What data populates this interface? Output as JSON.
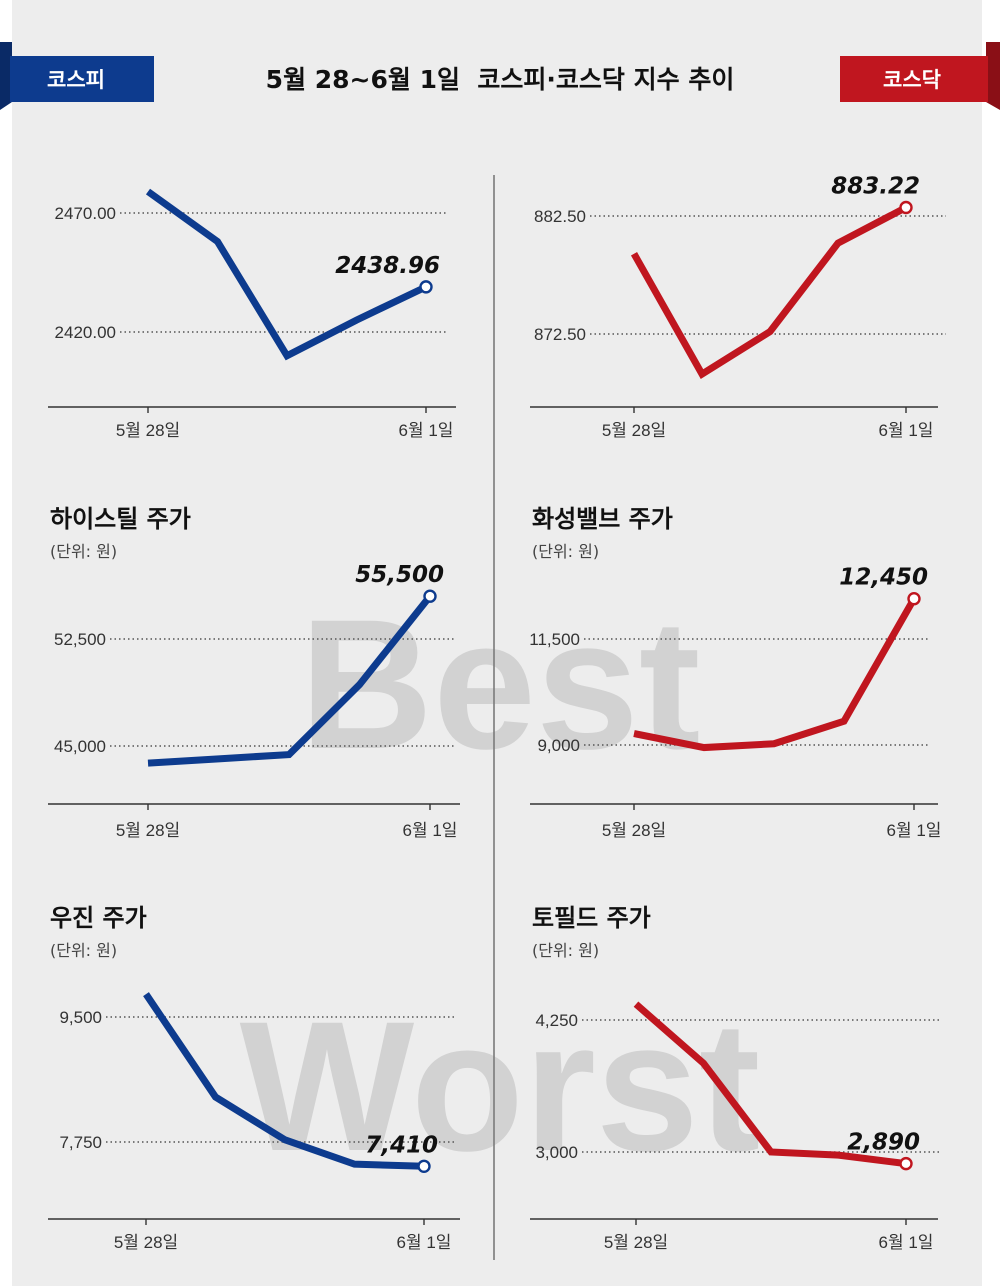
{
  "header": {
    "title": "5월 28~6월 1일  코스피·코스닥 지수 추이",
    "left_tag": "코스피",
    "right_tag": "코스닥"
  },
  "watermarks": {
    "best": "Best",
    "worst": "Worst"
  },
  "colors": {
    "blue": "#0d3b8e",
    "red": "#c0161f",
    "panel": "#ededed",
    "gridline": "#555555"
  },
  "chart_data": [
    {
      "id": "kospi",
      "type": "line",
      "title": "",
      "unit": "",
      "color": "blue",
      "x": [
        "5월 28일",
        "",
        "",
        "",
        "6월 1일"
      ],
      "y": [
        2479,
        2458,
        2410,
        2425,
        2438.96
      ],
      "last_label": "2438.96",
      "ticks": [
        {
          "v": 2470,
          "label": "2470.00"
        },
        {
          "v": 2420,
          "label": "2420.00"
        }
      ],
      "xticks": [
        "5월 28일",
        "6월 1일"
      ]
    },
    {
      "id": "kosdaq",
      "type": "line",
      "title": "",
      "unit": "",
      "color": "red",
      "x": [
        "5월 28일",
        "",
        "",
        "",
        "6월 1일"
      ],
      "y": [
        879.3,
        869.1,
        872.7,
        880.2,
        883.22
      ],
      "last_label": "883.22",
      "ticks": [
        {
          "v": 882.5,
          "label": "882.50"
        },
        {
          "v": 872.5,
          "label": "872.50"
        }
      ],
      "xticks": [
        "5월 28일",
        "6월 1일"
      ]
    },
    {
      "id": "hystiel",
      "type": "line",
      "title": "하이스틸 주가",
      "unit": "(단위: 원)",
      "color": "blue",
      "x": [
        "5월 28일",
        "",
        "",
        "",
        "6월 1일"
      ],
      "y": [
        43800,
        44100,
        44400,
        49300,
        55500
      ],
      "last_label": "55,500",
      "ticks": [
        {
          "v": 52500,
          "label": "52,500"
        },
        {
          "v": 45000,
          "label": "45,000"
        }
      ],
      "xticks": [
        "5월 28일",
        "6월 1일"
      ]
    },
    {
      "id": "hwasung",
      "type": "line",
      "title": "화성밸브 주가",
      "unit": "(단위: 원)",
      "color": "red",
      "x": [
        "5월 28일",
        "",
        "",
        "",
        "6월 1일"
      ],
      "y": [
        9270,
        8940,
        9030,
        9560,
        12450
      ],
      "last_label": "12,450",
      "ticks": [
        {
          "v": 11500,
          "label": "11,500"
        },
        {
          "v": 9000,
          "label": "9,000"
        }
      ],
      "xticks": [
        "5월 28일",
        "6월 1일"
      ]
    },
    {
      "id": "woojin",
      "type": "line",
      "title": "우진 주가",
      "unit": "(단위: 원)",
      "color": "blue",
      "x": [
        "5월 28일",
        "",
        "",
        "",
        "6월 1일"
      ],
      "y": [
        9820,
        8380,
        7780,
        7440,
        7410
      ],
      "last_label": "7,410",
      "ticks": [
        {
          "v": 9500,
          "label": "9,500"
        },
        {
          "v": 7750,
          "label": "7,750"
        }
      ],
      "xticks": [
        "5월 28일",
        "6월 1일"
      ]
    },
    {
      "id": "tofield",
      "type": "line",
      "title": "토필드 주가",
      "unit": "(단위: 원)",
      "color": "red",
      "x": [
        "5월 28일",
        "",
        "",
        "",
        "6월 1일"
      ],
      "y": [
        4400,
        3840,
        3000,
        2970,
        2890
      ],
      "last_label": "2,890",
      "ticks": [
        {
          "v": 4250,
          "label": "4,250"
        },
        {
          "v": 3000,
          "label": "3,000"
        }
      ],
      "xticks": [
        "5월 28일",
        "6월 1일"
      ]
    }
  ]
}
